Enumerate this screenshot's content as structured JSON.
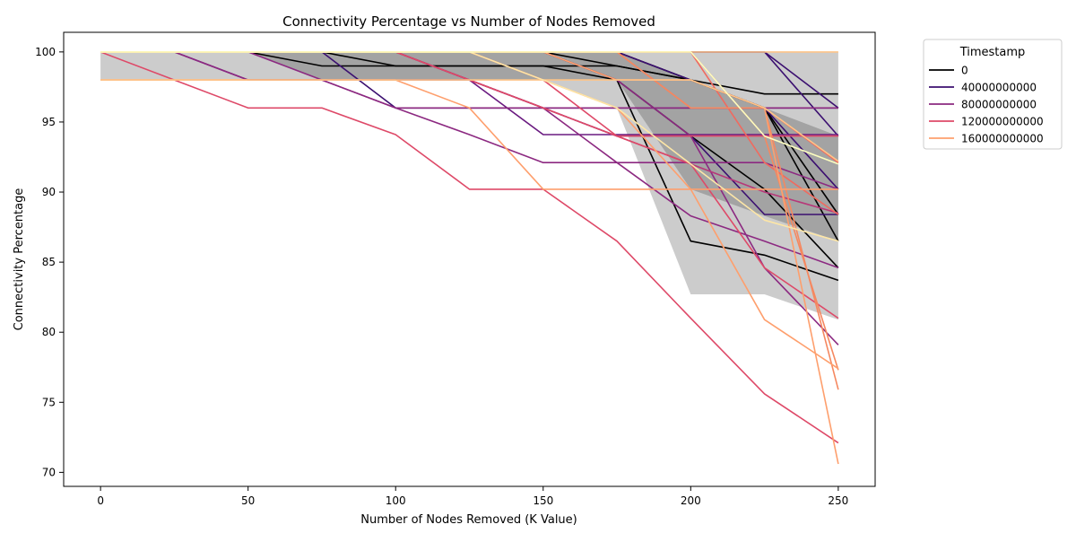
{
  "chart_data": {
    "type": "line",
    "title": "Connectivity Percentage vs Number of Nodes Removed",
    "xlabel": "Number of Nodes Removed (K Value)",
    "ylabel": "Connectivity Percentage",
    "xlim": [
      -12.5,
      262.5
    ],
    "ylim": [
      69,
      101.4
    ],
    "x_ticks": [
      0,
      50,
      100,
      150,
      200,
      250
    ],
    "y_ticks": [
      70,
      75,
      80,
      85,
      90,
      95,
      100
    ],
    "x": [
      0,
      25,
      50,
      75,
      100,
      125,
      150,
      175,
      200,
      225,
      250
    ],
    "grid": false,
    "legend": {
      "title": "Timestamp",
      "placement": "outside-top-right",
      "entries": [
        {
          "label": "0",
          "color": "#000000"
        },
        {
          "label": "40000000000",
          "color": "#3b0f70"
        },
        {
          "label": "80000000000",
          "color": "#8c2981"
        },
        {
          "label": "120000000000",
          "color": "#de4968"
        },
        {
          "label": "160000000000",
          "color": "#fe9f6d"
        }
      ]
    },
    "bands": [
      {
        "color": "#000000",
        "upper": [
          100,
          100,
          100,
          100,
          100,
          100,
          100,
          100,
          100,
          100,
          100
        ],
        "lower": [
          100,
          100,
          100,
          98,
          98,
          98,
          98,
          96,
          82.7,
          82.7,
          80.9
        ]
      },
      {
        "color": "#000000",
        "upper": [
          100,
          100,
          100,
          100,
          100,
          100,
          100,
          100,
          98,
          96,
          94
        ],
        "lower": [
          98,
          98,
          98,
          98,
          98,
          98,
          98,
          98,
          90.2,
          88.3,
          86.5
        ]
      }
    ],
    "series": [
      {
        "color": "#000000",
        "values": [
          100,
          100,
          100,
          99,
          99,
          99,
          99,
          98,
          86.5,
          85.5,
          83.7
        ]
      },
      {
        "color": "#000000",
        "values": [
          100,
          100,
          100,
          100,
          99,
          99,
          99,
          99,
          98,
          97,
          97
        ]
      },
      {
        "color": "#000000",
        "values": [
          100,
          100,
          100,
          100,
          100,
          100,
          100,
          99,
          98,
          96,
          88.4
        ]
      },
      {
        "color": "#000000",
        "values": [
          100,
          100,
          100,
          100,
          100,
          100,
          100,
          100,
          98,
          96,
          86.5
        ]
      },
      {
        "color": "#000000",
        "values": [
          100,
          100,
          100,
          100,
          100,
          100,
          100,
          98,
          94,
          90.2,
          84.6
        ]
      },
      {
        "color": "#3b0f70",
        "values": [
          100,
          100,
          100,
          100,
          100,
          100,
          100,
          100,
          100,
          100,
          96
        ]
      },
      {
        "color": "#3b0f70",
        "values": [
          100,
          100,
          100,
          100,
          100,
          100,
          100,
          100,
          100,
          100,
          94
        ]
      },
      {
        "color": "#3b0f70",
        "values": [
          100,
          100,
          100,
          100,
          96,
          96,
          96,
          96,
          96,
          96,
          96
        ]
      },
      {
        "color": "#3b0f70",
        "values": [
          100,
          100,
          100,
          100,
          100,
          100,
          100,
          100,
          98,
          96,
          90.2
        ]
      },
      {
        "color": "#3b0f70",
        "values": [
          100,
          100,
          100,
          100,
          100,
          98,
          96,
          94,
          94,
          88.4,
          88.4
        ]
      },
      {
        "color": "#6a1a80",
        "values": [
          100,
          100,
          98,
          98,
          98,
          98,
          94.1,
          94.1,
          94.1,
          94.1,
          94.1
        ]
      },
      {
        "color": "#8c2981",
        "values": [
          100,
          100,
          98,
          98,
          96,
          96,
          96,
          96,
          96,
          96,
          96
        ]
      },
      {
        "color": "#8c2981",
        "values": [
          100,
          100,
          100,
          98,
          96,
          94.1,
          92.1,
          92.1,
          92.1,
          92.1,
          90.2
        ]
      },
      {
        "color": "#8c2981",
        "values": [
          100,
          100,
          100,
          100,
          100,
          98,
          96,
          92.1,
          88.3,
          86.5,
          84.6
        ]
      },
      {
        "color": "#8c2981",
        "values": [
          100,
          100,
          100,
          100,
          100,
          100,
          100,
          98,
          94,
          84.6,
          79.1
        ]
      },
      {
        "color": "#b73779",
        "values": [
          100,
          100,
          100,
          100,
          100,
          98,
          96,
          94,
          92,
          90,
          88.5
        ]
      },
      {
        "color": "#de4968",
        "values": [
          100,
          98,
          96,
          96,
          94.1,
          90.2,
          90.2,
          86.5,
          81,
          75.6,
          72.1
        ]
      },
      {
        "color": "#de4968",
        "values": [
          100,
          100,
          100,
          100,
          100,
          98,
          96,
          94,
          92,
          84.6,
          81
        ]
      },
      {
        "color": "#de4968",
        "values": [
          100,
          100,
          100,
          100,
          100,
          100,
          98,
          94,
          94,
          94,
          94
        ]
      },
      {
        "color": "#f06a5f",
        "values": [
          100,
          100,
          100,
          100,
          100,
          100,
          100,
          100,
          96,
          96,
          92.1
        ]
      },
      {
        "color": "#f06a5f",
        "values": [
          100,
          100,
          100,
          100,
          100,
          100,
          100,
          100,
          100,
          92.1,
          88.4
        ]
      },
      {
        "color": "#f58860",
        "values": [
          100,
          100,
          100,
          100,
          100,
          100,
          100,
          100,
          100,
          94,
          77.3
        ]
      },
      {
        "color": "#f58860",
        "values": [
          100,
          100,
          100,
          100,
          100,
          100,
          100,
          100,
          96,
          96,
          75.9
        ]
      },
      {
        "color": "#fe9f6d",
        "values": [
          98,
          98,
          98,
          98,
          98,
          96,
          90.2,
          90.2,
          90.2,
          90.2,
          90.2
        ]
      },
      {
        "color": "#fe9f6d",
        "values": [
          100,
          100,
          100,
          100,
          100,
          100,
          98,
          96,
          90.2,
          80.9,
          77.4
        ]
      },
      {
        "color": "#fe9f6d",
        "values": [
          100,
          100,
          100,
          100,
          100,
          100,
          100,
          98,
          98,
          96,
          70.6
        ]
      },
      {
        "color": "#fec488",
        "values": [
          98,
          98,
          98,
          98,
          98,
          98,
          98,
          98,
          98,
          96,
          92.2
        ]
      },
      {
        "color": "#fec488",
        "values": [
          100,
          100,
          100,
          100,
          100,
          100,
          100,
          100,
          100,
          100,
          100
        ]
      },
      {
        "color": "#fde6a6",
        "values": [
          100,
          100,
          100,
          100,
          100,
          100,
          98,
          96,
          92,
          88,
          86.5
        ]
      },
      {
        "color": "#fcfdbf",
        "values": [
          100,
          100,
          100,
          100,
          100,
          100,
          100,
          100,
          100,
          94,
          92
        ]
      }
    ]
  }
}
